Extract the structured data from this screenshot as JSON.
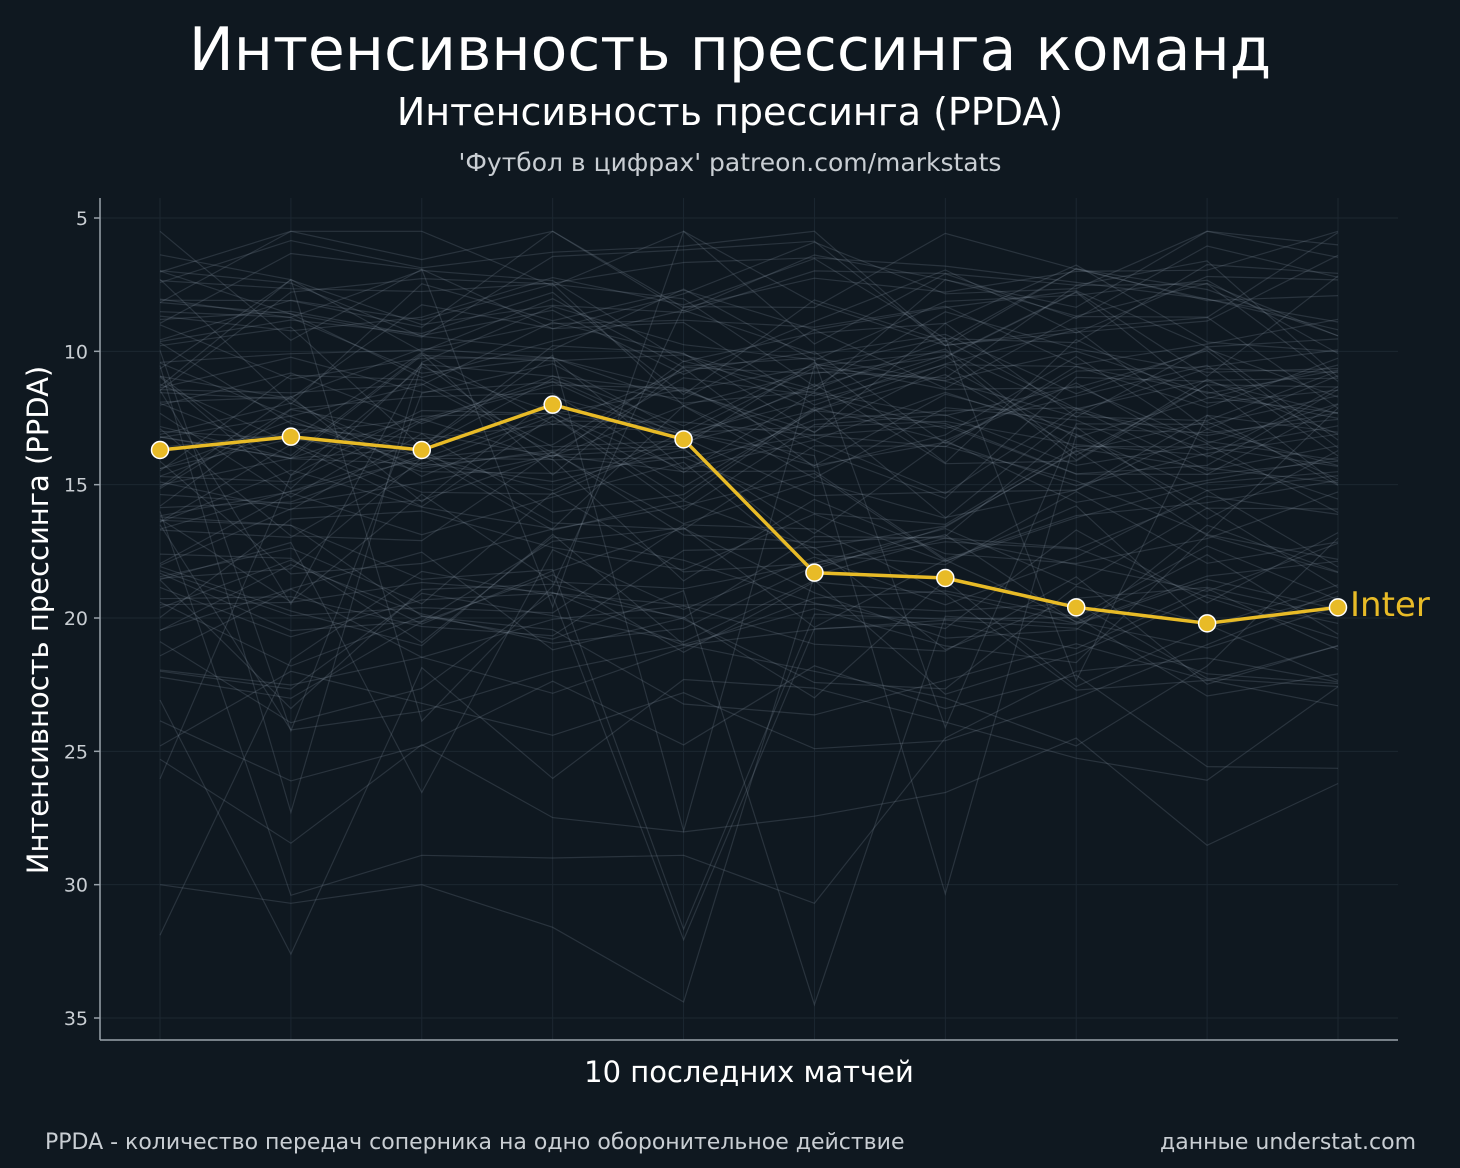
{
  "header": {
    "title": "Интенсивность прессинга команд",
    "subtitle": "Интенсивность прессинга (PPDA)",
    "source": "'Футбол в цифрах' patreon.com/markstats"
  },
  "footer": {
    "note": "PPDA - количество передач соперника на одно оборонительное действие",
    "credit": "данные understat.com"
  },
  "colors": {
    "background": "#0f1820",
    "highlight": "#e8bb27",
    "background_lines": "#8a98a6",
    "axis": "#9aa3ab"
  },
  "chart_data": {
    "type": "line",
    "title": "Интенсивность прессинга команд",
    "subtitle": "Интенсивность прессинга (PPDA)",
    "xlabel": "10 последних матчей",
    "ylabel": "Интенсивность прессинга (PPDA)",
    "x": [
      1,
      2,
      3,
      4,
      5,
      6,
      7,
      8,
      9,
      10
    ],
    "ylim": [
      5,
      35
    ],
    "y_reversed": true,
    "yticks": [
      5,
      10,
      15,
      20,
      25,
      30,
      35
    ],
    "grid": true,
    "highlight": {
      "name": "Inter",
      "values": [
        13.7,
        13.2,
        13.7,
        12.0,
        13.3,
        18.3,
        18.5,
        19.6,
        20.2,
        19.6
      ]
    },
    "background_series_count": 98
  }
}
